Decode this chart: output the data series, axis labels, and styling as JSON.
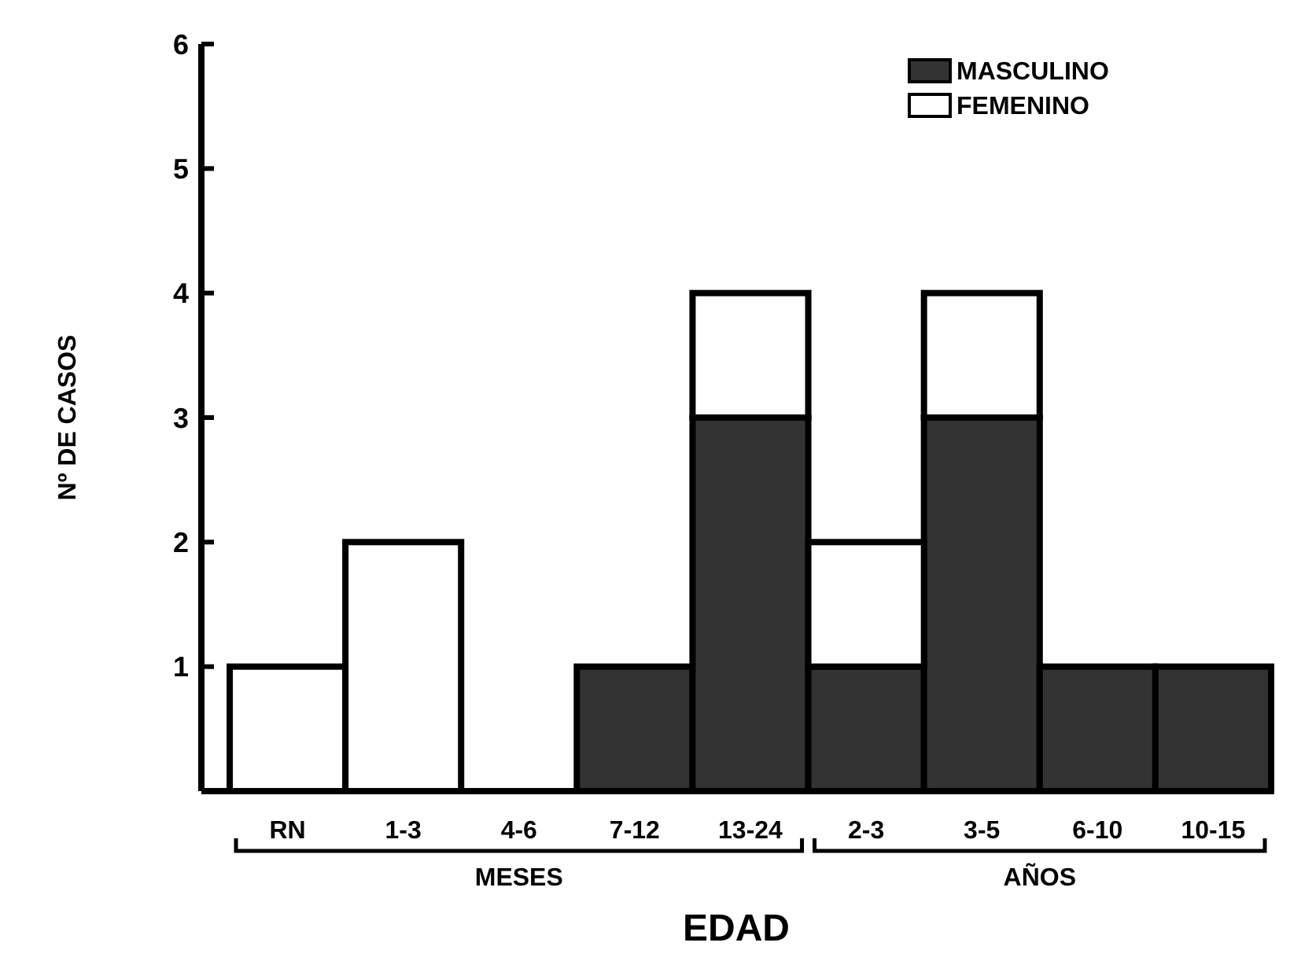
{
  "chart_data": {
    "type": "bar",
    "stacked": true,
    "xlabel": "EDAD",
    "ylabel": "Nº DE CASOS",
    "categories": [
      "RN",
      "1-3",
      "4-6",
      "7-12",
      "13-24",
      "2-3",
      "3-5",
      "6-10",
      "10-15"
    ],
    "series": [
      {
        "name": "MASCULINO",
        "color": "#333333",
        "values": [
          0,
          0,
          0,
          1,
          3,
          1,
          3,
          1,
          1
        ]
      },
      {
        "name": "FEMENINO",
        "color": "#ffffff",
        "values": [
          1,
          2,
          0,
          0,
          1,
          1,
          1,
          0,
          0
        ]
      }
    ],
    "ylim": [
      0,
      6
    ],
    "yticks": [
      1,
      2,
      3,
      4,
      5,
      6
    ],
    "legend": "top right",
    "grid": false,
    "annotations": [
      "MESES",
      "AÑOS"
    ]
  }
}
